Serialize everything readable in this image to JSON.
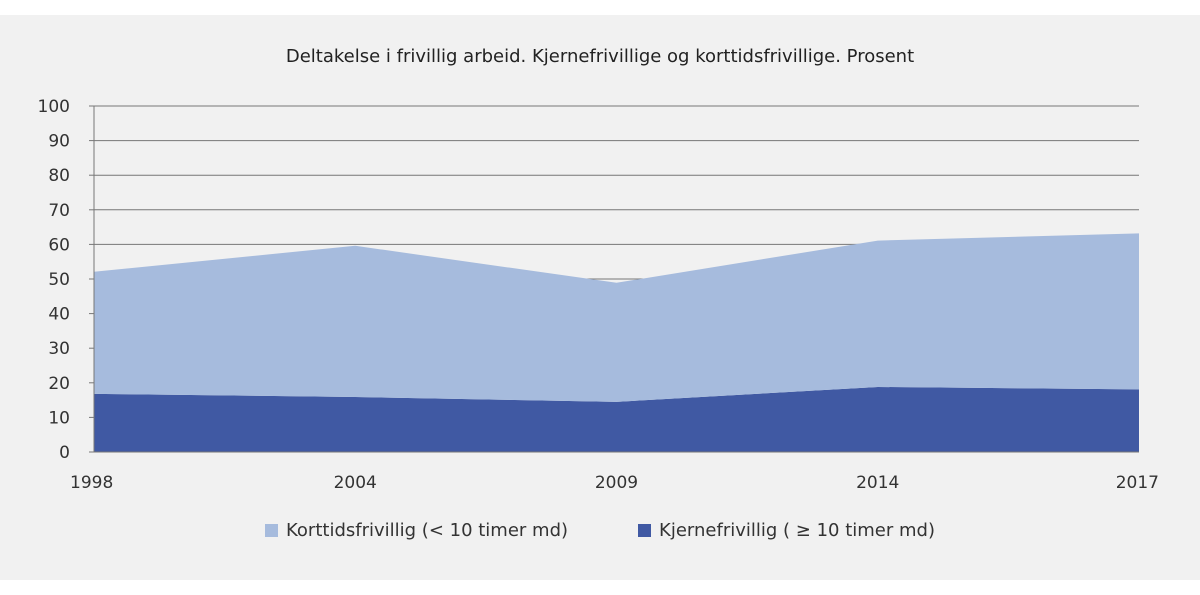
{
  "chart_data": {
    "type": "area",
    "stacked": true,
    "title": "Deltakelse i frivillig arbeid. Kjernefrivillige og korttidsfrivillige. Prosent",
    "categories": [
      "1998",
      "2004",
      "2009",
      "2014",
      "2017"
    ],
    "series": [
      {
        "name": "Kjernefrivillig (  ≥ 10 timer md)",
        "color": "#4059a3",
        "values": [
          16.8,
          15.9,
          14.5,
          18.8,
          18.1
        ]
      },
      {
        "name": "Korttidsfrivillig (< 10 timer md)",
        "color": "#a6bbdd",
        "values": [
          35.3,
          43.7,
          34.4,
          42.3,
          45.1
        ]
      }
    ],
    "ylim": [
      0,
      100
    ],
    "yticks": [
      "0",
      "10",
      "20",
      "30",
      "40",
      "50",
      "60",
      "70",
      "80",
      "90",
      "100"
    ],
    "grid": true,
    "legend_position": "bottom"
  }
}
